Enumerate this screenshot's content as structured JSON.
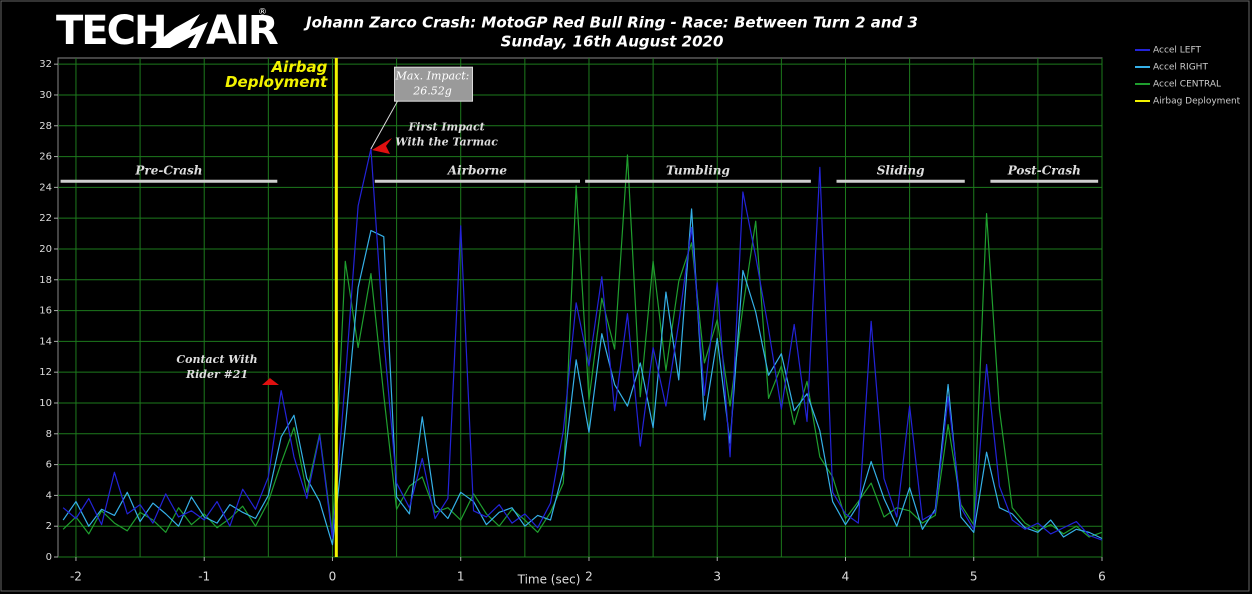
{
  "chart_data": {
    "type": "line",
    "title": [
      "Johann Zarco Crash: MotoGP Red Bull Ring - Race: Between Turn 2 and 3",
      "Sunday, 16th August 2020"
    ],
    "logo": [
      "TECH",
      "AIR",
      "®"
    ],
    "x_label": "Time (sec)",
    "xlim": [
      -2.14,
      6
    ],
    "ylim": [
      0,
      32.4
    ],
    "xticks": [
      -2,
      -1,
      0,
      1,
      2,
      3,
      4,
      5,
      6
    ],
    "x_minor_ticks": [
      -1.5,
      -0.5,
      0.5,
      1.5,
      2.5,
      3.5,
      4.5,
      5.5
    ],
    "yticks": [
      0,
      2,
      4,
      6,
      8,
      10,
      12,
      14,
      16,
      18,
      20,
      22,
      24,
      26,
      28,
      30,
      32
    ],
    "grid": true,
    "grid_color": "#1d7a1d",
    "legend": "top-right",
    "x": [
      -2.1,
      -2.0,
      -1.9,
      -1.8,
      -1.7,
      -1.6,
      -1.5,
      -1.4,
      -1.3,
      -1.2,
      -1.1,
      -1.0,
      -0.9,
      -0.8,
      -0.7,
      -0.6,
      -0.5,
      -0.4,
      -0.3,
      -0.2,
      -0.1,
      0.0,
      0.1,
      0.2,
      0.3,
      0.4,
      0.5,
      0.6,
      0.7,
      0.8,
      0.9,
      1.0,
      1.1,
      1.2,
      1.3,
      1.4,
      1.5,
      1.6,
      1.7,
      1.8,
      1.9,
      2.0,
      2.1,
      2.2,
      2.3,
      2.4,
      2.5,
      2.6,
      2.7,
      2.8,
      2.9,
      3.0,
      3.1,
      3.2,
      3.3,
      3.4,
      3.5,
      3.6,
      3.7,
      3.8,
      3.9,
      4.0,
      4.1,
      4.2,
      4.3,
      4.4,
      4.5,
      4.6,
      4.7,
      4.8,
      4.9,
      5.0,
      5.1,
      5.2,
      5.3,
      5.4,
      5.5,
      5.6,
      5.7,
      5.8,
      5.9,
      6.0
    ],
    "series": [
      {
        "name": "Accel LEFT",
        "color": "#2323d8",
        "values": [
          3.2,
          2.5,
          3.8,
          2.1,
          5.5,
          2.8,
          3.4,
          2.2,
          4.1,
          2.6,
          3.0,
          2.4,
          3.6,
          2.0,
          4.4,
          3.1,
          5.2,
          10.8,
          6.5,
          3.8,
          7.9,
          1.2,
          11.5,
          22.8,
          26.5,
          14.2,
          4.8,
          3.2,
          6.4,
          2.5,
          3.8,
          21.5,
          3.0,
          2.6,
          3.4,
          2.2,
          2.8,
          1.9,
          3.5,
          8.2,
          16.5,
          12.4,
          18.2,
          9.5,
          15.8,
          7.2,
          13.6,
          9.8,
          15.2,
          21.4,
          10.5,
          17.8,
          6.5,
          23.7,
          19.5,
          14.8,
          9.6,
          15.1,
          8.8,
          25.3,
          4.2,
          2.8,
          2.2,
          15.3,
          5.1,
          2.6,
          9.8,
          2.4,
          2.9,
          10.4,
          3.2,
          1.8,
          12.5,
          4.6,
          2.4,
          1.8,
          2.2,
          1.5,
          1.9,
          2.3,
          1.4,
          1.1
        ]
      },
      {
        "name": "Accel RIGHT",
        "color": "#35b0e8",
        "values": [
          2.4,
          3.6,
          2.0,
          3.1,
          2.7,
          4.2,
          2.3,
          3.5,
          2.8,
          2.0,
          3.9,
          2.6,
          2.2,
          3.4,
          2.9,
          2.5,
          4.0,
          7.8,
          9.2,
          5.1,
          3.6,
          0.8,
          8.4,
          17.5,
          21.2,
          20.8,
          3.9,
          2.8,
          9.1,
          3.4,
          2.5,
          4.2,
          3.6,
          2.1,
          2.9,
          3.2,
          2.0,
          2.7,
          2.4,
          5.6,
          12.8,
          8.1,
          14.5,
          11.2,
          9.8,
          12.6,
          8.4,
          17.2,
          11.5,
          22.6,
          8.9,
          14.2,
          7.4,
          18.6,
          15.9,
          11.8,
          13.2,
          9.5,
          10.6,
          8.2,
          3.6,
          2.1,
          3.4,
          6.2,
          3.8,
          2.0,
          4.5,
          1.8,
          3.1,
          11.2,
          2.6,
          1.6,
          6.8,
          3.2,
          2.8,
          1.9,
          1.6,
          2.4,
          1.3,
          1.8,
          1.6,
          1.2
        ]
      },
      {
        "name": "Accel CENTRAL",
        "color": "#1f9e2e",
        "values": [
          1.8,
          2.6,
          1.5,
          3.0,
          2.2,
          1.7,
          2.9,
          2.4,
          1.6,
          3.2,
          2.1,
          2.8,
          1.9,
          2.5,
          3.3,
          2.0,
          3.6,
          6.1,
          8.4,
          4.2,
          8.0,
          1.5,
          19.2,
          13.6,
          18.4,
          10.5,
          3.1,
          4.6,
          5.2,
          2.9,
          3.2,
          2.4,
          4.1,
          2.8,
          2.0,
          3.1,
          2.4,
          1.6,
          2.9,
          4.8,
          24.1,
          10.2,
          16.8,
          13.5,
          26.1,
          10.4,
          19.2,
          12.1,
          17.9,
          20.4,
          12.6,
          15.4,
          9.8,
          16.2,
          21.8,
          10.3,
          12.4,
          8.6,
          11.4,
          6.5,
          5.2,
          2.5,
          3.6,
          4.8,
          2.6,
          3.2,
          3.0,
          2.2,
          2.7,
          8.6,
          3.4,
          2.1,
          22.3,
          9.6,
          3.2,
          2.2,
          1.7,
          2.1,
          1.5,
          2.0,
          1.3,
          1.6
        ]
      },
      {
        "name": "Airbag Deployment",
        "color": "#f2f200",
        "x": [
          0.03,
          0.03
        ],
        "values": [
          0,
          32.4
        ]
      }
    ],
    "phases": [
      {
        "label": "Pre-Crash",
        "start": -2.12,
        "end": -0.43
      },
      {
        "label": "Airborne",
        "start": 0.33,
        "end": 1.93
      },
      {
        "label": "Tumbling",
        "start": 1.97,
        "end": 3.73
      },
      {
        "label": "Sliding",
        "start": 3.93,
        "end": 4.93
      },
      {
        "label": "Post-Crash",
        "start": 5.13,
        "end": 5.97
      }
    ],
    "phase_level": 24.4,
    "annotations": [
      {
        "text": [
          "Airbag",
          "Deployment"
        ],
        "x": -0.04,
        "y": 31.3,
        "color": "#f2f200"
      },
      {
        "text": [
          "Max. Impact:",
          "26.52g"
        ],
        "x": 0.78,
        "y": 30.7,
        "boxed": true
      },
      {
        "text": [
          "First Impact",
          "With the Tarmac"
        ],
        "x": 0.89,
        "y": 27.4
      },
      {
        "text": [
          "Contact With",
          "Rider #21"
        ],
        "x": -0.9,
        "y": 12.3
      }
    ]
  }
}
